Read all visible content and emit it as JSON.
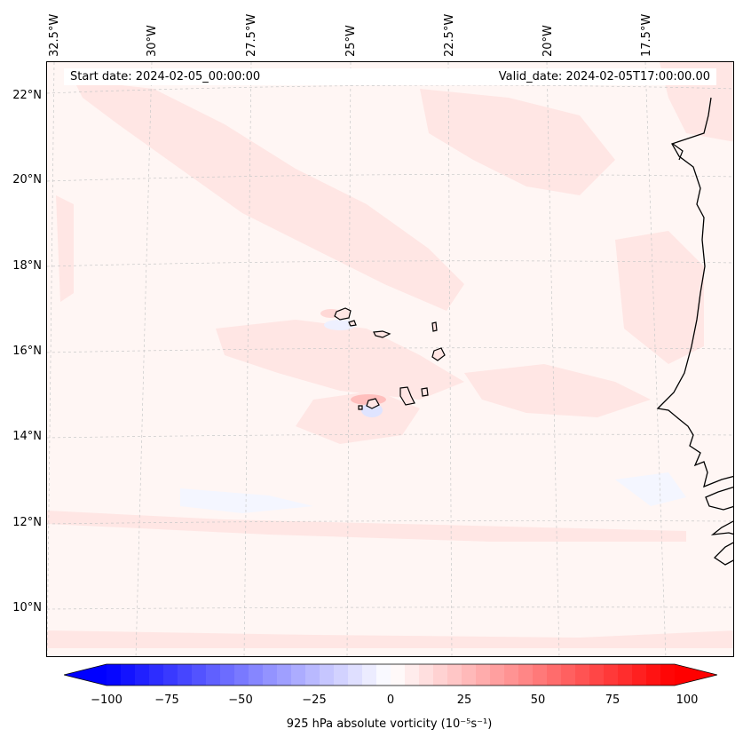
{
  "header": {
    "start_date": "Start date: 2024-02-05_00:00:00",
    "valid_date": "Valid_date: 2024-02-05T17:00:00.00"
  },
  "latitude_labels": [
    "22°N",
    "20°N",
    "18°N",
    "16°N",
    "14°N",
    "12°N",
    "10°N"
  ],
  "longitude_labels": [
    "32.5°W",
    "30°W",
    "27.5°W",
    "25°W",
    "22.5°W",
    "20°W",
    "17.5°W"
  ],
  "colorbar": {
    "ticks": [
      "−100",
      "−75",
      "−50",
      "−25",
      "0",
      "25",
      "50",
      "75",
      "100"
    ],
    "title": "925 hPa absolute vorticity (10⁻⁵s⁻¹)",
    "min_color": "#0000ff",
    "max_color": "#ff0000"
  },
  "colors": {
    "background_field": "#fff6f4",
    "weak_positive": "#ffe6e4",
    "weak_negative": "#f4f6ff",
    "coastline": "#000000",
    "gridline": "#c8c8c8"
  }
}
